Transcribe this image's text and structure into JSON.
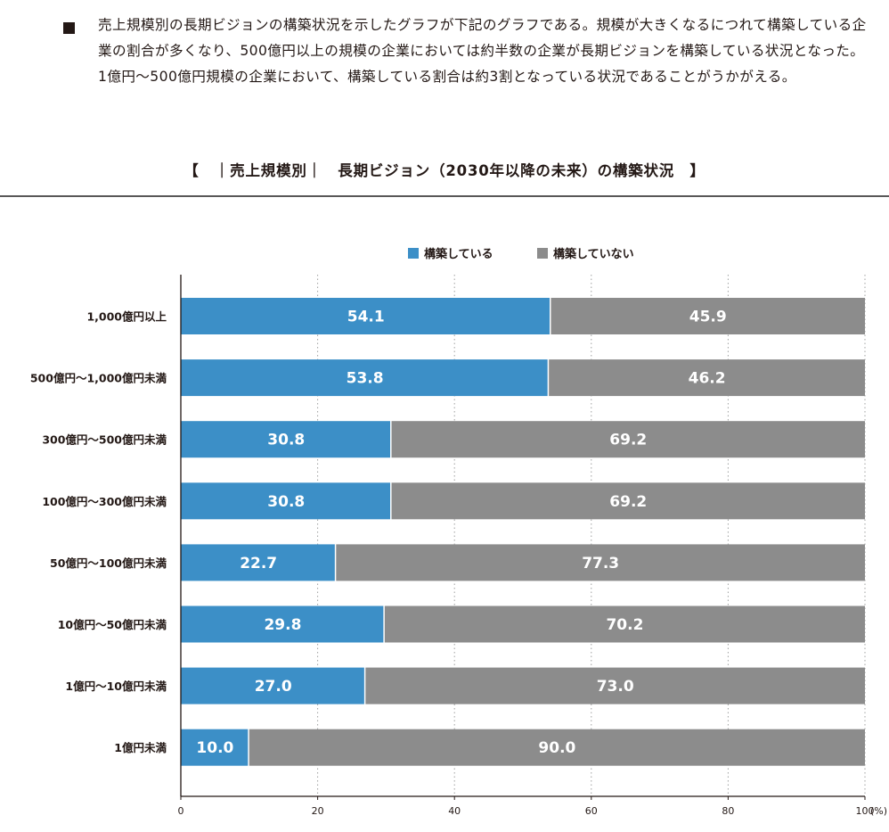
{
  "intro": {
    "text": "売上規模別の長期ビジョンの構築状況を示したグラフが下記のグラフである。規模が大きくなるにつれて構築している企業の割合が多くなり、500億円以上の規模の企業においては約半数の企業が長期ビジョンを構築している状況となった。1億円～500億円規模の企業において、構築している割合は約3割となっている状況であることがうかがえる。"
  },
  "colors": {
    "built": "#3c8fc7",
    "not_built": "#8c8c8c",
    "grid": "#9fa0a0",
    "axis": "#231815"
  },
  "chart_data": {
    "type": "bar",
    "orientation": "horizontal",
    "stacked": true,
    "title": "【　｜売上規模別｜　長期ビジョン（2030年以降の未来）の構築状況　】",
    "legend_position": "top",
    "categories": [
      "1,000億円以上",
      "500億円～1,000億円未満",
      "300億円～500億円未満",
      "100億円～300億円未満",
      "50億円～100億円未満",
      "10億円～50億円未満",
      "1億円～10億円未満",
      "1億円未満"
    ],
    "series": [
      {
        "name": "構築している",
        "values": [
          54.1,
          53.8,
          30.8,
          30.8,
          22.7,
          29.8,
          27.0,
          10.0
        ]
      },
      {
        "name": "構築していない",
        "values": [
          45.9,
          46.2,
          69.2,
          69.2,
          77.3,
          70.2,
          73.0,
          90.0
        ]
      }
    ],
    "xlim": [
      0,
      100
    ],
    "xticks": [
      "0",
      "20",
      "40",
      "60",
      "80",
      "100"
    ],
    "xunit": "(%)",
    "grid": true,
    "grid_style": "dotted-vertical"
  }
}
